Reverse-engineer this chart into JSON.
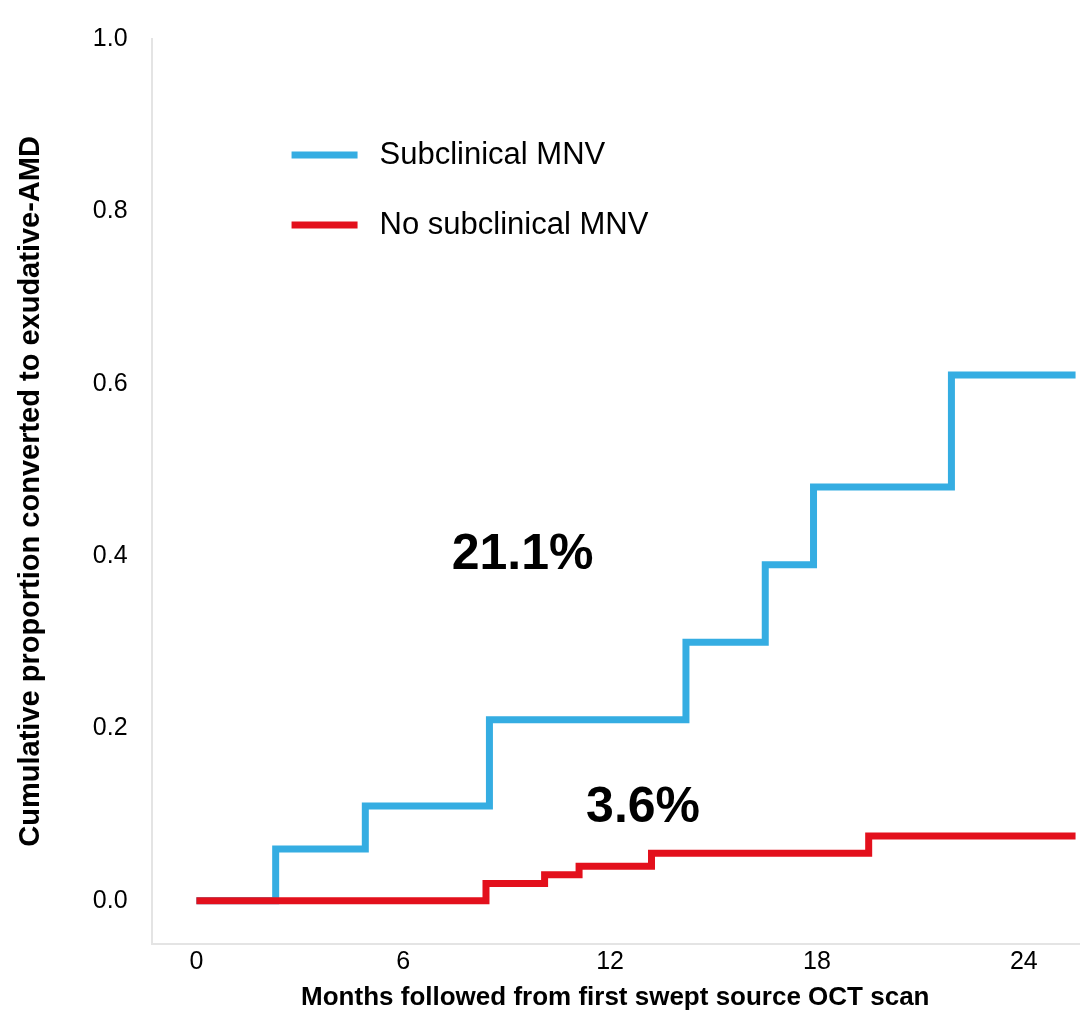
{
  "chart_data": {
    "type": "step",
    "xlabel": "Months followed from first swept source OCT scan",
    "ylabel": "Cumulative proportion converted to exudative-AMD",
    "series": [
      {
        "name": "Subclinical MNV",
        "color": "#35ade2",
        "x": [
          0,
          2.3,
          4.9,
          8.5,
          14.2,
          16.5,
          17.9,
          21.9,
          25.5
        ],
        "values": [
          0,
          0.06,
          0.11,
          0.21,
          0.3,
          0.39,
          0.48,
          0.61,
          0.61
        ]
      },
      {
        "name": "No subclinical MNV",
        "color": "#e3101c",
        "x": [
          0,
          8.4,
          10.1,
          11.1,
          13.2,
          19.5,
          25.5
        ],
        "values": [
          0,
          0.02,
          0.03,
          0.04,
          0.055,
          0.075,
          0.075
        ]
      }
    ],
    "xlim": [
      -1.3,
      25.6
    ],
    "xticks": [
      0,
      6,
      12,
      18,
      24
    ],
    "ylim": [
      -0.05,
      1.0
    ],
    "yticks": [
      {
        "value": 0,
        "label": "0.0"
      },
      0.2,
      0.4,
      0.6,
      0.8,
      {
        "value": 1,
        "label": "1.0"
      }
    ],
    "grid": false,
    "legend": "top left",
    "line_style": "solid",
    "marker": "none",
    "annotations": [
      "21.1%",
      "3.6%"
    ]
  }
}
